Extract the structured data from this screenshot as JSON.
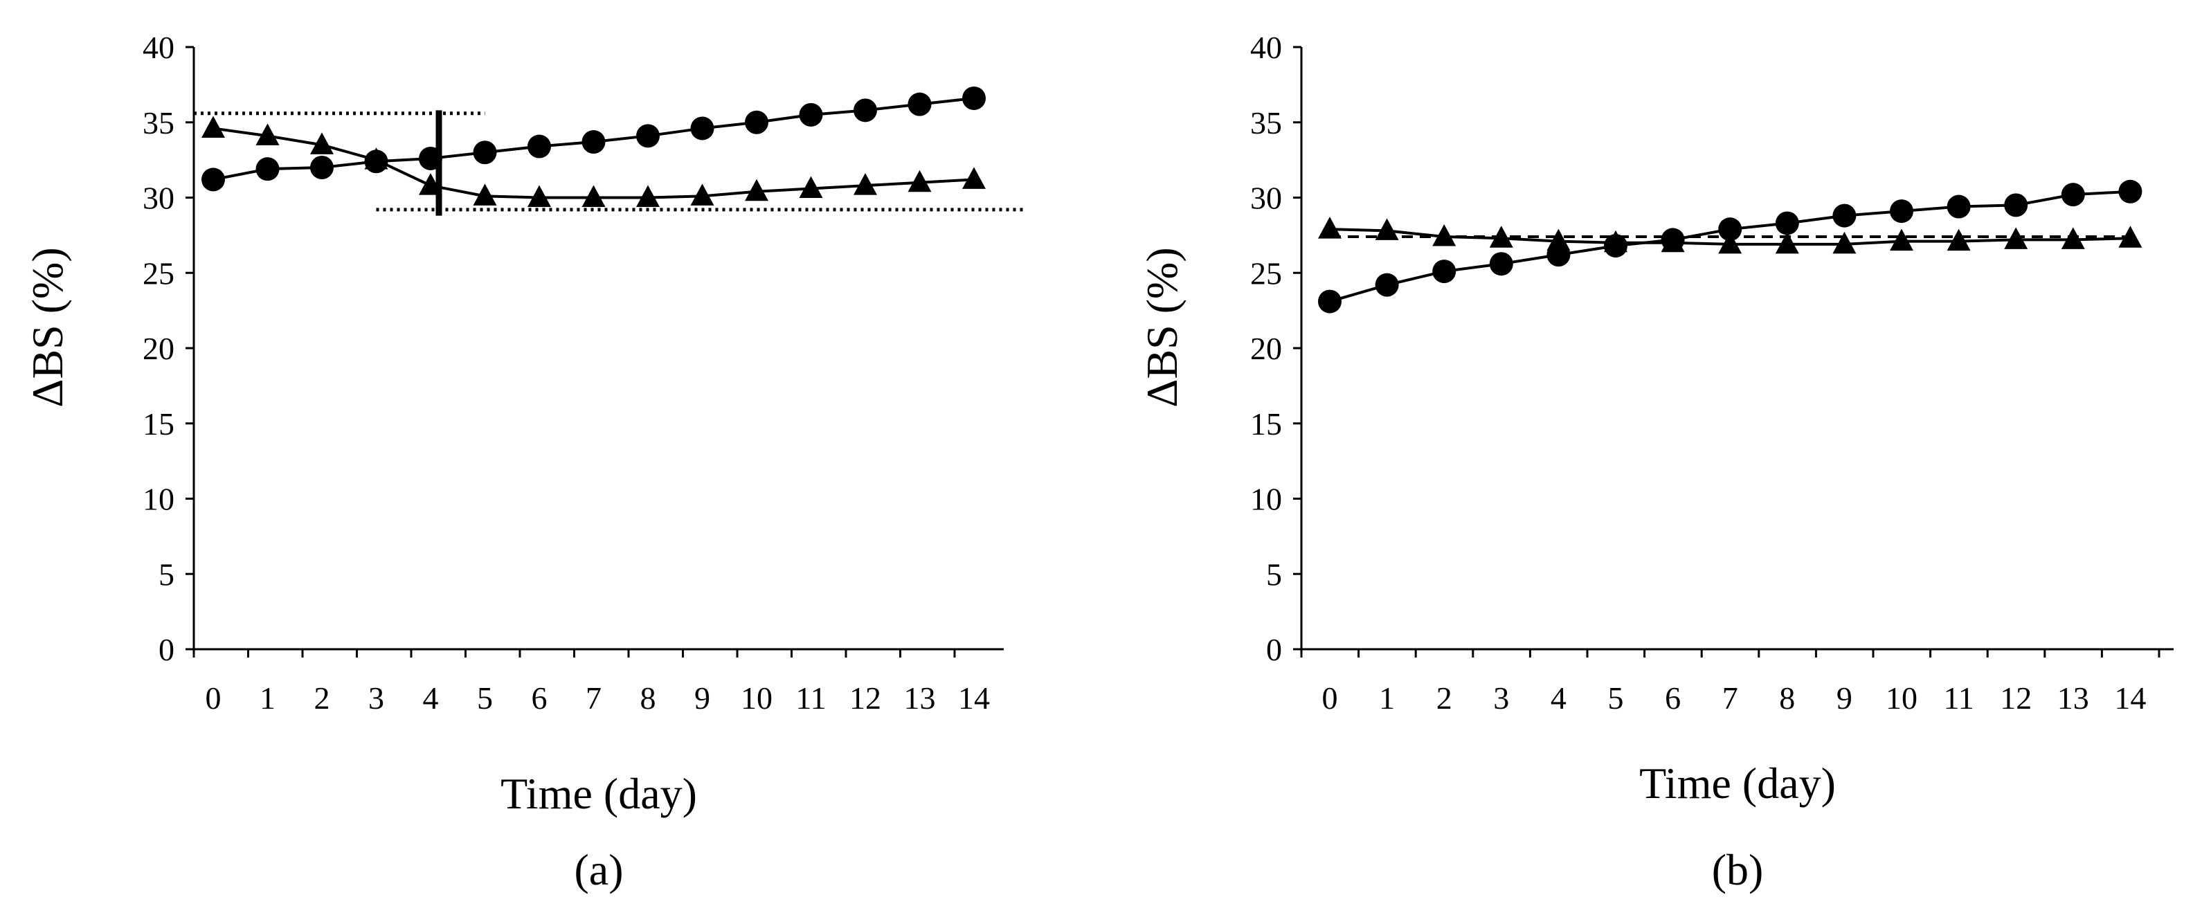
{
  "chart_data": [
    {
      "panel_label": "(a)",
      "type": "line",
      "xlabel": "Time (day)",
      "ylabel": "ΔBS (%)",
      "ylim": [
        0,
        40
      ],
      "yticks": [
        0,
        5,
        10,
        15,
        20,
        25,
        30,
        35,
        40
      ],
      "categories": [
        "0",
        "1",
        "2",
        "3",
        "4",
        "5",
        "6",
        "7",
        "8",
        "9",
        "10",
        "11",
        "12",
        "13",
        "14"
      ],
      "series": [
        {
          "name": "circle",
          "marker": "circle",
          "values": [
            31.2,
            31.9,
            32.0,
            32.4,
            32.6,
            33.0,
            33.4,
            33.7,
            34.1,
            34.6,
            35.0,
            35.5,
            35.8,
            36.2,
            36.6
          ]
        },
        {
          "name": "triangle",
          "marker": "triangle",
          "values": [
            34.6,
            34.1,
            33.5,
            32.5,
            30.8,
            30.1,
            30.0,
            30.0,
            30.0,
            30.1,
            30.4,
            30.6,
            30.8,
            31.0,
            31.2
          ]
        }
      ],
      "annotations": {
        "upper_dotted_y": 35.6,
        "lower_dotted_y": 29.2,
        "bar_top_y": 35.8,
        "bar_bottom_y": 28.8
      }
    },
    {
      "panel_label": "(b)",
      "type": "line",
      "xlabel": "Time (day)",
      "ylabel": "ΔBS (%)",
      "ylim": [
        0,
        40
      ],
      "yticks": [
        0,
        5,
        10,
        15,
        20,
        25,
        30,
        35,
        40
      ],
      "categories": [
        "0",
        "1",
        "2",
        "3",
        "4",
        "5",
        "6",
        "7",
        "8",
        "9",
        "10",
        "11",
        "12",
        "13",
        "14"
      ],
      "series": [
        {
          "name": "circle",
          "marker": "circle",
          "values": [
            23.1,
            24.2,
            25.1,
            25.6,
            26.2,
            26.8,
            27.2,
            27.9,
            28.3,
            28.8,
            29.1,
            29.4,
            29.5,
            30.2,
            30.4
          ]
        },
        {
          "name": "triangle",
          "marker": "triangle",
          "values": [
            27.9,
            27.8,
            27.4,
            27.3,
            27.1,
            27.0,
            27.0,
            26.9,
            26.9,
            26.9,
            27.1,
            27.1,
            27.2,
            27.2,
            27.3
          ]
        }
      ],
      "annotations": {
        "dashed_reference_y": 27.4
      }
    }
  ]
}
